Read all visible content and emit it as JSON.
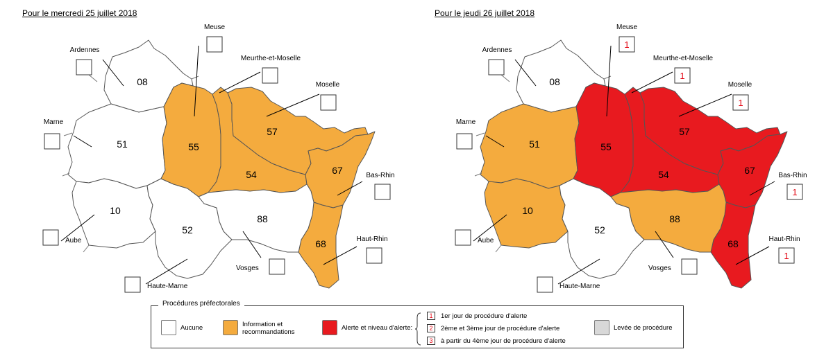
{
  "titles": {
    "left": "Pour le mercredi 25 juillet 2018",
    "right": "Pour le jeudi 26 juillet 2018"
  },
  "colors": {
    "none": "#ffffff",
    "information": "#f4ab3e",
    "alert": "#e81a1f",
    "lifted": "#d8d8d8",
    "level_text": "#e30613"
  },
  "departments": [
    {
      "code": "08",
      "name": "Ardennes"
    },
    {
      "code": "51",
      "name": "Marne"
    },
    {
      "code": "10",
      "name": "Aube"
    },
    {
      "code": "52",
      "name": "Haute-Marne"
    },
    {
      "code": "55",
      "name": "Meuse"
    },
    {
      "code": "54",
      "name": "Meurthe-et-Moselle"
    },
    {
      "code": "57",
      "name": "Moselle"
    },
    {
      "code": "67",
      "name": "Bas-Rhin"
    },
    {
      "code": "68",
      "name": "Haut-Rhin"
    },
    {
      "code": "88",
      "name": "Vosges"
    }
  ],
  "maps": [
    {
      "id": "mercredi",
      "status": {
        "08": "none",
        "51": "none",
        "10": "none",
        "52": "none",
        "55": "information",
        "54": "information",
        "57": "information",
        "67": "information",
        "68": "information",
        "88": "none"
      },
      "levels": {
        "08": "",
        "51": "",
        "10": "",
        "52": "",
        "55": "",
        "54": "",
        "57": "",
        "67": "",
        "68": "",
        "88": ""
      }
    },
    {
      "id": "jeudi",
      "status": {
        "08": "none",
        "51": "information",
        "10": "information",
        "52": "none",
        "55": "alert",
        "54": "alert",
        "57": "alert",
        "67": "alert",
        "68": "alert",
        "88": "information"
      },
      "levels": {
        "08": "",
        "51": "",
        "10": "",
        "52": "",
        "55": "1",
        "54": "",
        "57": "1",
        "67": "1",
        "68": "1",
        "88": "",
        "meurthe": "1"
      }
    }
  ],
  "legend": {
    "title": "Procédures préfectorales",
    "none": "Aucune",
    "information": "Information et\nrecommandations",
    "alert": "Alerte et niveau d'alerte:",
    "levels": [
      {
        "num": "1",
        "text": "1er jour de procédure d'alerte"
      },
      {
        "num": "2",
        "text": "2ème et 3ème jour de procédure d'alerte"
      },
      {
        "num": "3",
        "text": "à partir du 4ème jour de procédure d'alerte"
      }
    ],
    "lifted": "Levée de procédure"
  }
}
